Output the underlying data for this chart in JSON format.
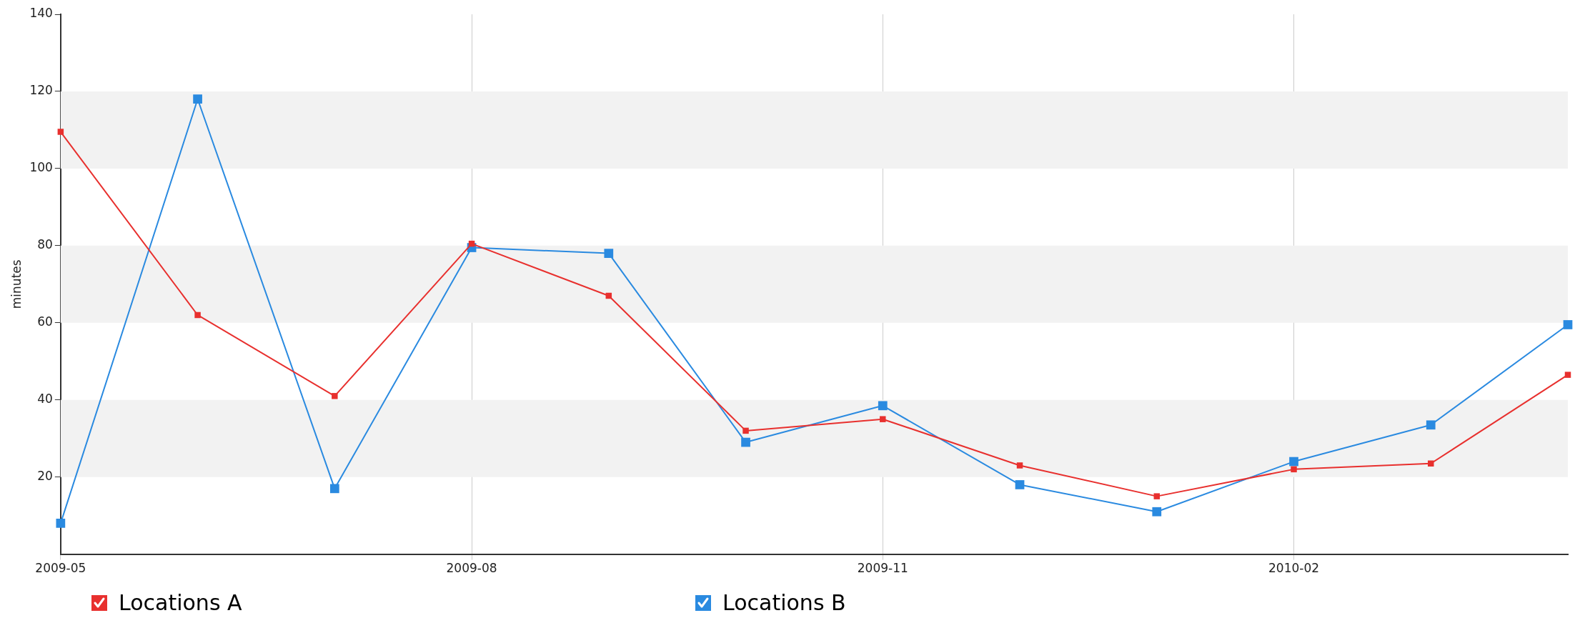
{
  "chart_data": {
    "type": "line",
    "ylabel": "minutes",
    "categories": [
      "2009-05",
      null,
      null,
      "2009-08",
      null,
      null,
      "2009-11",
      null,
      null,
      "2010-02",
      null,
      null
    ],
    "series": [
      {
        "name": "Locations A",
        "color": "#e8302e",
        "values": [
          109.5,
          62,
          41,
          80.5,
          67,
          32,
          35,
          23,
          15,
          22,
          23.5,
          46.5
        ]
      },
      {
        "name": "Locations B",
        "color": "#2a8ae0",
        "values": [
          8,
          118,
          17,
          79.5,
          78,
          29,
          38.5,
          18,
          11,
          24,
          33.5,
          59.5
        ]
      }
    ],
    "ylim": [
      0,
      140
    ],
    "yticks": [
      20,
      40,
      60,
      80,
      100,
      120,
      140
    ],
    "bands": [
      {
        "axis": "y",
        "from": 20,
        "to": 40,
        "color": "#f2f2f2"
      },
      {
        "axis": "y",
        "from": 60,
        "to": 80,
        "color": "#f2f2f2"
      },
      {
        "axis": "y",
        "from": 100,
        "to": 120,
        "color": "#f2f2f2"
      }
    ],
    "grid": "x",
    "legend": "bottom left",
    "marker": "square",
    "line_style": "solid"
  }
}
